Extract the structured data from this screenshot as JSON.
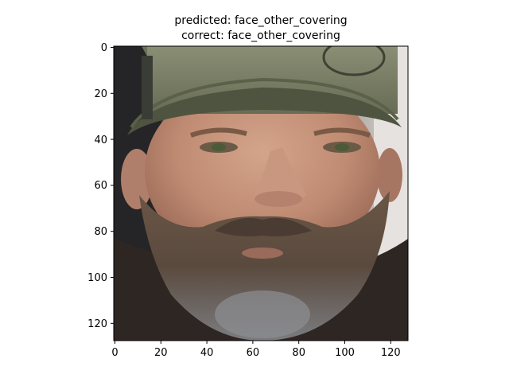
{
  "title": {
    "predicted": "predicted: face_other_covering",
    "correct": "correct: face_other_covering"
  },
  "image": {
    "subject": "bearded man wearing an olive green baseball cap",
    "colors": {
      "cap": "#747a60",
      "cap_dark": "#4f5441",
      "skin": "#c2917a",
      "beard": "#5b4a3d",
      "beard_grey": "#8d8f93",
      "background_left": "#2c2c2e",
      "background_right": "#d9d5d1"
    }
  },
  "axes": {
    "x_ticks": [
      "0",
      "20",
      "40",
      "60",
      "80",
      "100",
      "120"
    ],
    "y_ticks": [
      "0",
      "20",
      "40",
      "60",
      "80",
      "100",
      "120"
    ],
    "x_range": [
      0,
      128
    ],
    "y_range": [
      0,
      128
    ]
  }
}
